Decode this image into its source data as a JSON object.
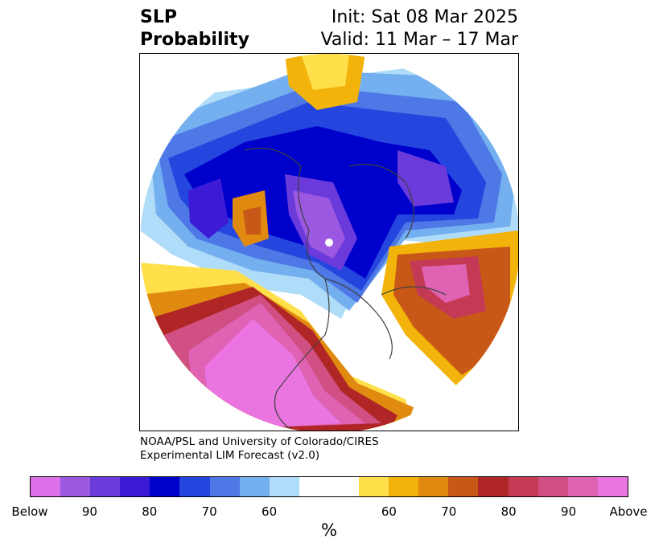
{
  "title": {
    "left_line1": "SLP",
    "left_line2": "Probability",
    "right_line1": "Init: Sat 08 Mar 2025",
    "right_line2": "Valid: 11 Mar – 17 Mar"
  },
  "credit": {
    "line1": "NOAA/PSL and University of Colorado/CIRES",
    "line2": "Experimental LIM Forecast (v2.0)"
  },
  "map": {
    "projection": "north-polar-stereographic",
    "features": [
      "coastlines",
      "country-borders",
      "us-state-borders"
    ]
  },
  "colorbar": {
    "colors": [
      "#dd70e8",
      "#9b58e0",
      "#6a3adb",
      "#3d1bd6",
      "#0000cc",
      "#2445de",
      "#4d78e6",
      "#74afef",
      "#afdcf8",
      "#ffffff",
      "#ffffff",
      "#ffe04a",
      "#f2b30a",
      "#e08a10",
      "#c85818",
      "#b02626",
      "#c43a55",
      "#d15083",
      "#e062b3",
      "#ea75e0"
    ],
    "ticks": [
      "Below",
      "90",
      "80",
      "70",
      "60",
      "60",
      "70",
      "80",
      "90",
      "Above"
    ],
    "unit": "%"
  }
}
